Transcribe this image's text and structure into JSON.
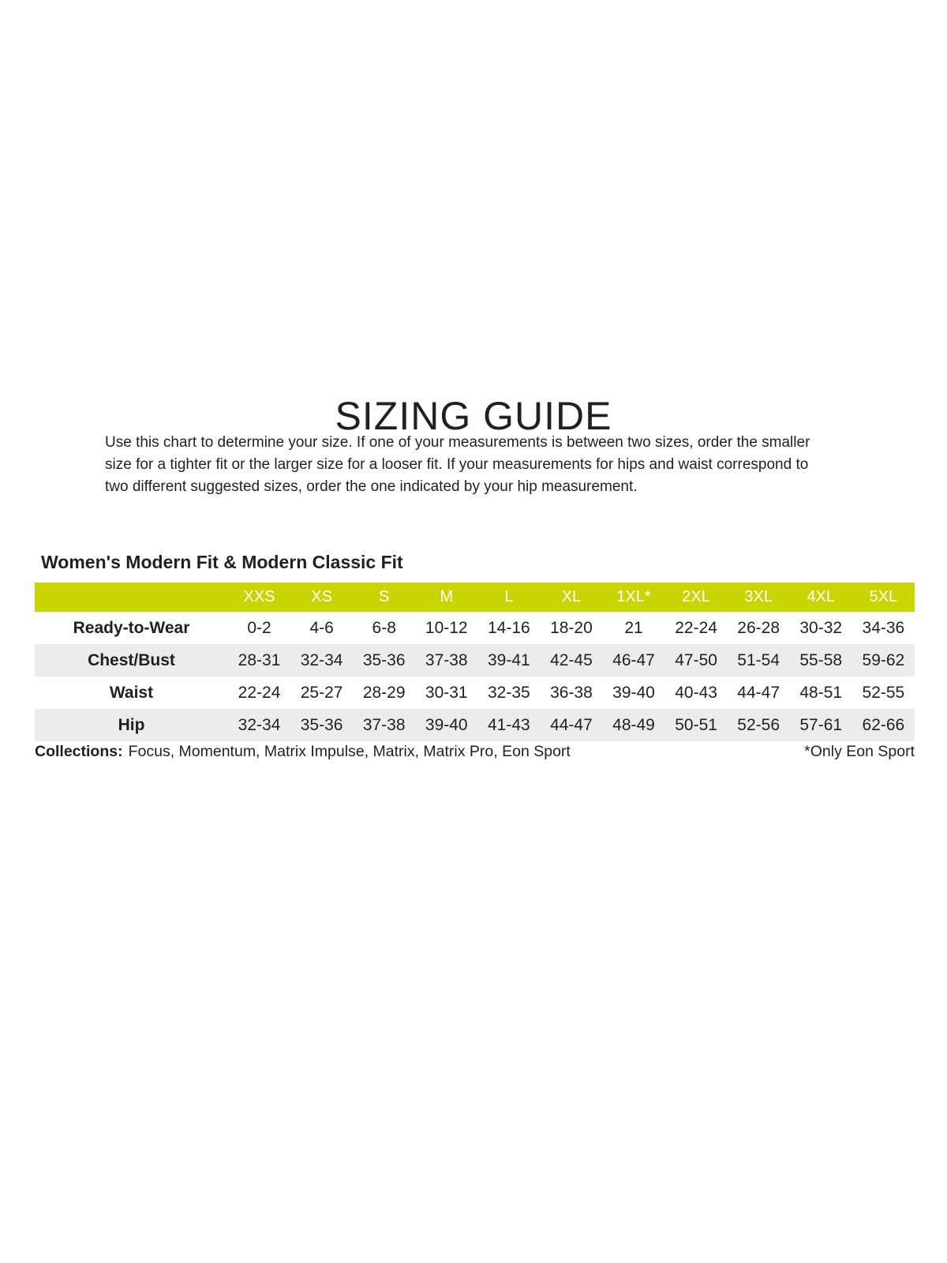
{
  "page": {
    "title": "SIZING GUIDE",
    "intro_lines": [
      "Use this chart to determine your size. If one of your measurements is between two sizes, order the smaller",
      "size for a tighter fit or the larger size for a looser fit. If your measurements for hips and waist correspond to",
      "two different suggested sizes, order the one indicated by your hip measurement."
    ]
  },
  "section": {
    "heading": "Women's Modern Fit & Modern Classic Fit"
  },
  "table": {
    "columns": [
      "XXS",
      "XS",
      "S",
      "M",
      "L",
      "XL",
      "1XL*",
      "2XL",
      "3XL",
      "4XL",
      "5XL"
    ],
    "rows": [
      {
        "label": "Ready-to-Wear",
        "values": [
          "0-2",
          "4-6",
          "6-8",
          "10-12",
          "14-16",
          "18-20",
          "21",
          "22-24",
          "26-28",
          "30-32",
          "34-36"
        ]
      },
      {
        "label": "Chest/Bust",
        "values": [
          "28-31",
          "32-34",
          "35-36",
          "37-38",
          "39-41",
          "42-45",
          "46-47",
          "47-50",
          "51-54",
          "55-58",
          "59-62"
        ]
      },
      {
        "label": "Waist",
        "values": [
          "22-24",
          "25-27",
          "28-29",
          "30-31",
          "32-35",
          "36-38",
          "39-40",
          "40-43",
          "44-47",
          "48-51",
          "52-55"
        ]
      },
      {
        "label": "Hip",
        "values": [
          "32-34",
          "35-36",
          "37-38",
          "39-40",
          "41-43",
          "44-47",
          "48-49",
          "50-51",
          "52-56",
          "57-61",
          "62-66"
        ]
      }
    ]
  },
  "footer": {
    "collections_label": "Collections:",
    "collections_list": "Focus, Momentum, Matrix Impulse, Matrix, Matrix Pro, Eon Sport",
    "footnote": "*Only Eon Sport"
  },
  "colors": {
    "header_bg": "#cad400",
    "header_text": "#ffffff",
    "row_alt_bg": "#ececec",
    "text": "#231f20"
  }
}
